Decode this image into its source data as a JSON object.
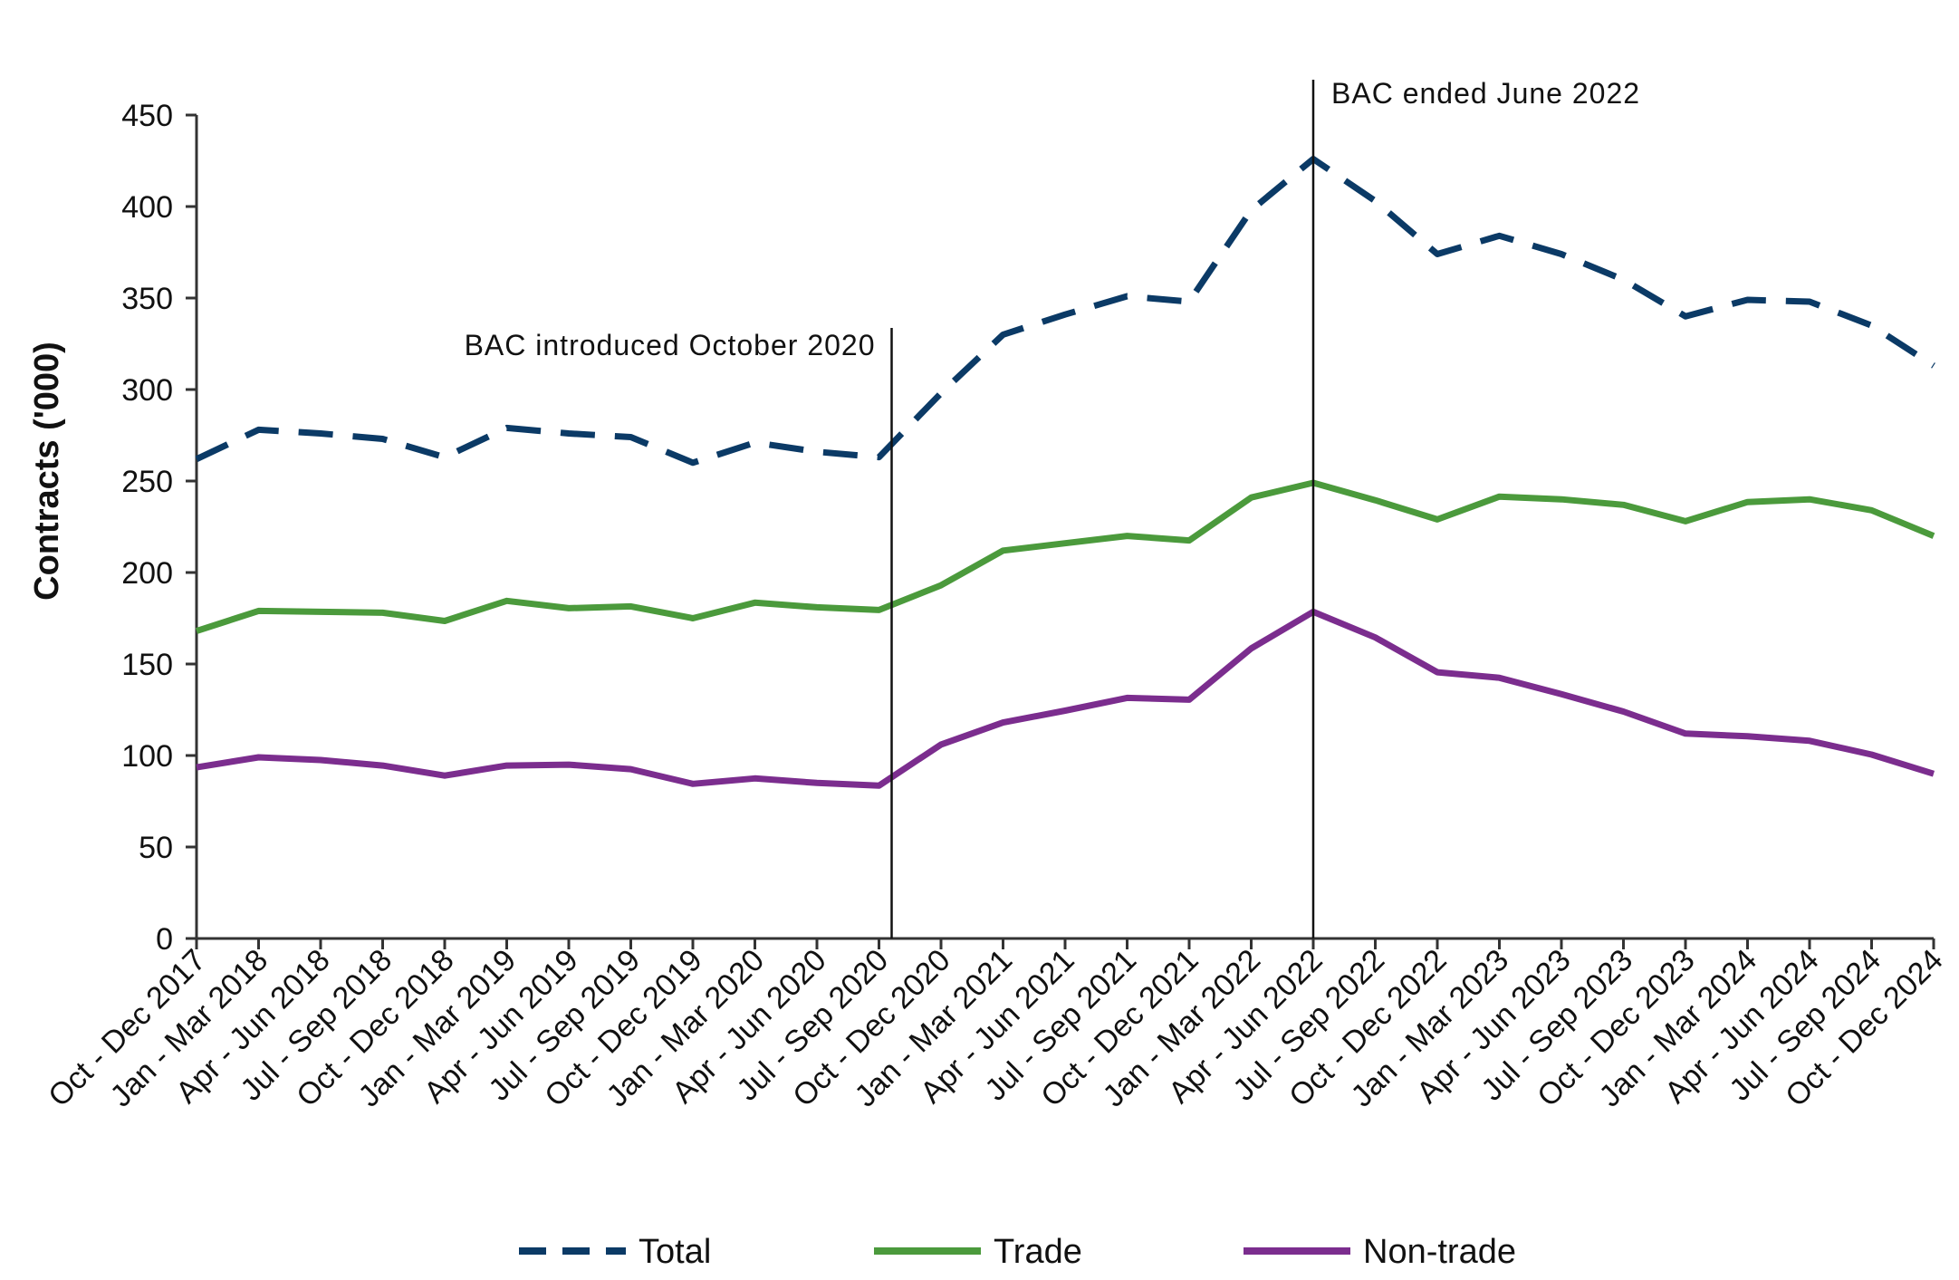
{
  "chart_data": {
    "type": "line",
    "ylabel": "Contracts ('000)",
    "xlabel": "",
    "ylim": [
      0,
      450
    ],
    "yticks": [
      0,
      50,
      100,
      150,
      200,
      250,
      300,
      350,
      400,
      450
    ],
    "grid": false,
    "legend_position": "bottom",
    "categories": [
      "Oct - Dec 2017",
      "Jan - Mar 2018",
      "Apr - Jun 2018",
      "Jul - Sep 2018",
      "Oct - Dec 2018",
      "Jan - Mar 2019",
      "Apr - Jun 2019",
      "Jul - Sep 2019",
      "Oct - Dec 2019",
      "Jan - Mar 2020",
      "Apr - Jun 2020",
      "Jul - Sep 2020",
      "Oct - Dec 2020",
      "Jan - Mar 2021",
      "Apr - Jun 2021",
      "Jul - Sep 2021",
      "Oct - Dec 2021",
      "Jan - Mar 2022",
      "Apr - Jun 2022",
      "Jul - Sep 2022",
      "Oct - Dec 2022",
      "Jan - Mar 2023",
      "Apr - Jun 2023",
      "Jul - Sep 2023",
      "Oct - Dec 2023",
      "Jan - Mar 2024",
      "Apr - Jun 2024",
      "Jul - Sep 2024",
      "Oct - Dec 2024"
    ],
    "series": [
      {
        "name": "Total",
        "color": "#0b3a66",
        "style": "dashed",
        "values": [
          262,
          278,
          276,
          273,
          263,
          279,
          276,
          274,
          260,
          271,
          266,
          263,
          298,
          330,
          341,
          351,
          348,
          398,
          426,
          403,
          374,
          384,
          374,
          360,
          340,
          349,
          348,
          335,
          313
        ]
      },
      {
        "name": "Trade",
        "color": "#4b9a3c",
        "style": "solid",
        "values": [
          168,
          179,
          178.5,
          178,
          173.5,
          184.5,
          180.5,
          181.5,
          175,
          183.5,
          181,
          179.5,
          193,
          212,
          216,
          220,
          217.5,
          241,
          249,
          239.5,
          229,
          241.5,
          240,
          237,
          228,
          238.5,
          240,
          234,
          220
        ]
      },
      {
        "name": "Non-trade",
        "color": "#7b2d8e",
        "style": "solid",
        "values": [
          93.5,
          99,
          97.5,
          94.5,
          89,
          94.5,
          95,
          92.5,
          84.5,
          87.5,
          85,
          83.5,
          106,
          118,
          124.5,
          131.5,
          130.5,
          158.5,
          178.5,
          164.5,
          145.5,
          142.5,
          133.5,
          124,
          112,
          110.5,
          108,
          100.5,
          90
        ]
      }
    ],
    "annotations": [
      {
        "text": "BAC introduced October 2020",
        "after_category_index": 11,
        "align": "left"
      },
      {
        "text": "BAC ended June 2022",
        "after_category_index": 18,
        "align": "right"
      }
    ]
  }
}
